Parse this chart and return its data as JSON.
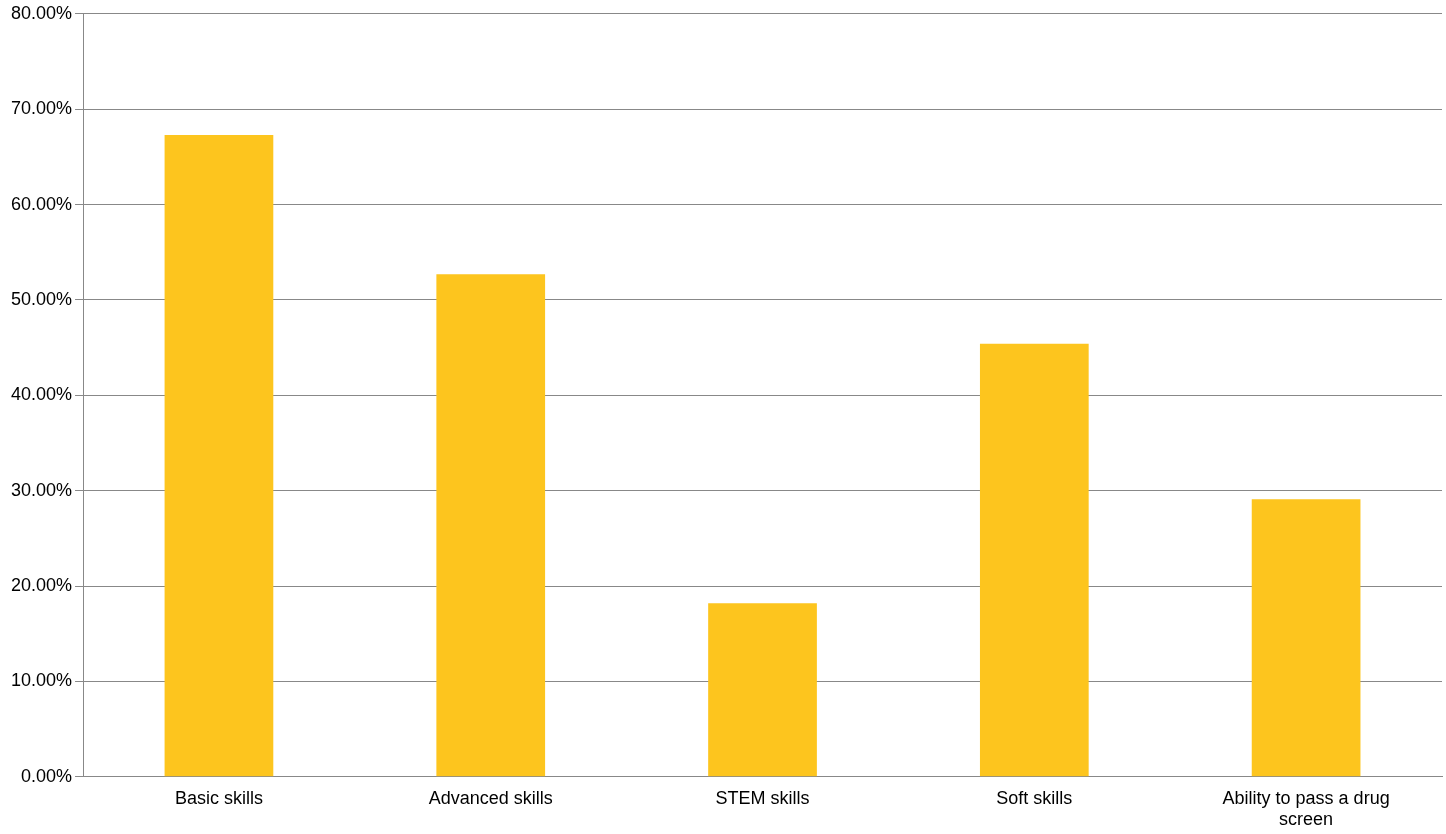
{
  "chart_data": {
    "type": "bar",
    "categories": [
      "Basic skills",
      "Advanced skills",
      "STEM skills",
      "Soft skills",
      "Ability to pass a drug screen"
    ],
    "values": [
      67.3,
      52.7,
      18.2,
      45.4,
      29.1
    ],
    "color": "#fdc51e",
    "ylim": [
      0,
      80
    ],
    "yticks": [
      {
        "value": 0,
        "label": "0.00%"
      },
      {
        "value": 10,
        "label": "10.00%"
      },
      {
        "value": 20,
        "label": "20.00%"
      },
      {
        "value": 30,
        "label": "30.00%"
      },
      {
        "value": 40,
        "label": "40.00%"
      },
      {
        "value": 50,
        "label": "50.00%"
      },
      {
        "value": 60,
        "label": "60.00%"
      },
      {
        "value": 70,
        "label": "70.00%"
      },
      {
        "value": 80,
        "label": "80.00%"
      }
    ],
    "grid": "y",
    "legend": false
  }
}
